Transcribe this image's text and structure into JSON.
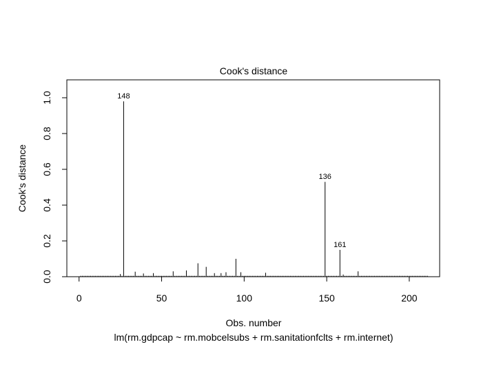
{
  "chart_data": {
    "type": "bar",
    "title": "Cook's distance",
    "xlabel": "Obs. number",
    "subtitle": "lm(rm.gdpcap ~ rm.mobcelsubs + rm.sanitationfclts + rm.internet)",
    "ylabel": "Cook's distance",
    "xlim": [
      -7.4,
      218.4
    ],
    "ylim": [
      0,
      1.1
    ],
    "xticks": [
      0,
      50,
      100,
      150,
      200
    ],
    "xtick_labels": [
      "0",
      "50",
      "100",
      "150",
      "200"
    ],
    "yticks": [
      0.0,
      0.2,
      0.4,
      0.6,
      0.8,
      1.0
    ],
    "ytick_labels": [
      "0.0",
      "0.2",
      "0.4",
      "0.6",
      "0.8",
      "1.0"
    ],
    "grid": false,
    "legend": "none",
    "n_obs": 211,
    "large_values": [
      {
        "x": 27,
        "y": 0.98
      },
      {
        "x": 149,
        "y": 0.53
      },
      {
        "x": 158,
        "y": 0.15
      },
      {
        "x": 95,
        "y": 0.1
      },
      {
        "x": 72,
        "y": 0.075
      },
      {
        "x": 77,
        "y": 0.055
      },
      {
        "x": 65,
        "y": 0.035
      },
      {
        "x": 57,
        "y": 0.03
      },
      {
        "x": 34,
        "y": 0.028
      },
      {
        "x": 169,
        "y": 0.03
      },
      {
        "x": 89,
        "y": 0.025
      },
      {
        "x": 98,
        "y": 0.025
      },
      {
        "x": 113,
        "y": 0.022
      },
      {
        "x": 86,
        "y": 0.02
      },
      {
        "x": 82,
        "y": 0.02
      },
      {
        "x": 45,
        "y": 0.02
      },
      {
        "x": 39,
        "y": 0.018
      },
      {
        "x": 25,
        "y": 0.015
      },
      {
        "x": 160,
        "y": 0.012
      }
    ],
    "baseline_value": 0.005,
    "annotations": [
      {
        "label": "148",
        "x": 27,
        "y": 0.98
      },
      {
        "label": "136",
        "x": 149,
        "y": 0.53
      },
      {
        "label": "161",
        "x": 158,
        "y": 0.15
      }
    ]
  }
}
